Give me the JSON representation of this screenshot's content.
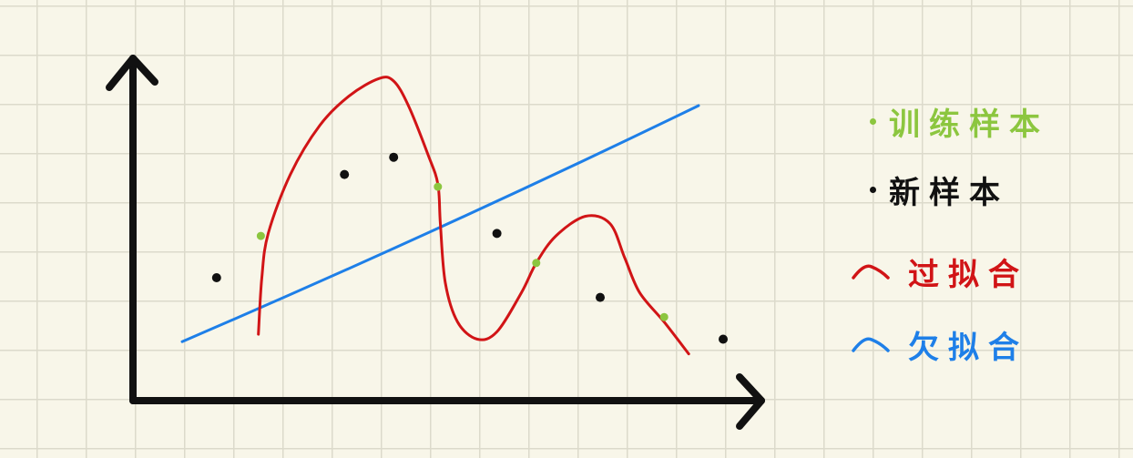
{
  "colors": {
    "axis": "#111111",
    "overfit": "#d11416",
    "underfit": "#1e7fe8",
    "train_sample": "#8cc63f",
    "new_sample": "#111111"
  },
  "legend": {
    "train_sample": "训练样本",
    "new_sample": "新样本",
    "overfit": "过拟合",
    "underfit": "欠拟合"
  },
  "samples": {
    "train": [
      {
        "x": 2.6,
        "y": 3.35
      },
      {
        "x": 6.2,
        "y": 4.35
      },
      {
        "x": 8.2,
        "y": 2.8
      },
      {
        "x": 10.8,
        "y": 1.7
      }
    ],
    "new": [
      {
        "x": 1.7,
        "y": 2.5
      },
      {
        "x": 4.3,
        "y": 4.6
      },
      {
        "x": 5.3,
        "y": 4.95
      },
      {
        "x": 7.4,
        "y": 3.4
      },
      {
        "x": 9.5,
        "y": 2.1
      },
      {
        "x": 12.0,
        "y": 1.25
      }
    ]
  },
  "underfit_line": {
    "from": {
      "x": 1.0,
      "y": 1.2
    },
    "to": {
      "x": 11.5,
      "y": 6.0
    }
  },
  "overfit_curve": [
    {
      "x": 2.55,
      "y": 1.35
    },
    {
      "x": 2.62,
      "y": 2.5
    },
    {
      "x": 2.75,
      "y": 3.4
    },
    {
      "x": 3.2,
      "y": 4.6
    },
    {
      "x": 3.8,
      "y": 5.6
    },
    {
      "x": 4.4,
      "y": 6.2
    },
    {
      "x": 5.0,
      "y": 6.55
    },
    {
      "x": 5.3,
      "y": 6.5
    },
    {
      "x": 5.6,
      "y": 6.0
    },
    {
      "x": 6.0,
      "y": 5.0
    },
    {
      "x": 6.2,
      "y": 4.4
    },
    {
      "x": 6.25,
      "y": 3.6
    },
    {
      "x": 6.35,
      "y": 2.4
    },
    {
      "x": 6.6,
      "y": 1.6
    },
    {
      "x": 7.0,
      "y": 1.25
    },
    {
      "x": 7.4,
      "y": 1.4
    },
    {
      "x": 7.9,
      "y": 2.2
    },
    {
      "x": 8.2,
      "y": 2.8
    },
    {
      "x": 8.6,
      "y": 3.35
    },
    {
      "x": 9.2,
      "y": 3.75
    },
    {
      "x": 9.7,
      "y": 3.6
    },
    {
      "x": 10.0,
      "y": 2.9
    },
    {
      "x": 10.3,
      "y": 2.2
    },
    {
      "x": 10.8,
      "y": 1.6
    },
    {
      "x": 11.3,
      "y": 0.95
    }
  ],
  "axis_range": {
    "x": [
      0,
      13
    ],
    "y": [
      0,
      8
    ]
  }
}
